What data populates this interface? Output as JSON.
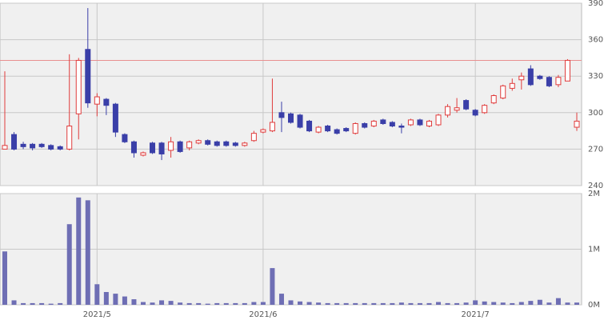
{
  "chart_data": [
    {
      "type": "candlestick",
      "open": [
        270,
        282,
        274,
        274,
        274,
        273,
        272,
        270,
        299,
        352,
        307,
        311,
        307,
        282,
        276,
        265,
        275,
        275,
        269,
        276,
        271,
        275,
        277,
        276,
        276,
        275,
        273,
        277,
        284,
        285,
        300,
        299,
        298,
        293,
        284,
        289,
        286,
        287,
        283,
        291,
        289,
        294,
        292,
        289,
        290,
        294,
        289,
        290,
        298,
        302,
        310,
        302,
        300,
        308,
        312,
        320,
        327,
        336,
        330,
        329,
        323,
        326,
        288
      ],
      "high": [
        334,
        284,
        276,
        275,
        275,
        274,
        273,
        348,
        345,
        386,
        316,
        312,
        308,
        283,
        277,
        268,
        276,
        276,
        280,
        277,
        277,
        278,
        278,
        277,
        277,
        276,
        276,
        285,
        287,
        328,
        309,
        300,
        299,
        294,
        289,
        290,
        287,
        288,
        292,
        292,
        294,
        295,
        293,
        291,
        295,
        295,
        294,
        299,
        307,
        312,
        311,
        303,
        307,
        315,
        323,
        328,
        333,
        339,
        331,
        330,
        331,
        344,
        300
      ],
      "low": [
        270,
        269,
        270,
        269,
        271,
        269,
        269,
        269,
        278,
        304,
        297,
        298,
        280,
        275,
        263,
        264,
        266,
        261,
        263,
        267,
        269,
        274,
        273,
        272,
        272,
        272,
        272,
        276,
        283,
        284,
        284,
        291,
        287,
        284,
        283,
        284,
        282,
        284,
        282,
        287,
        288,
        290,
        288,
        283,
        289,
        289,
        288,
        289,
        296,
        300,
        302,
        297,
        299,
        307,
        311,
        318,
        319,
        322,
        327,
        321,
        321,
        326,
        285
      ],
      "close": [
        273,
        270,
        272,
        271,
        272,
        270,
        270,
        289,
        343,
        308,
        313,
        306,
        284,
        276,
        267,
        267,
        267,
        266,
        276,
        268,
        276,
        277,
        274,
        273,
        273,
        273,
        275,
        283,
        286,
        292,
        296,
        292,
        288,
        285,
        288,
        285,
        283,
        285,
        291,
        288,
        293,
        291,
        289,
        288,
        294,
        290,
        293,
        298,
        305,
        304,
        303,
        298,
        306,
        314,
        322,
        324,
        330,
        323,
        328,
        322,
        329,
        343,
        293
      ],
      "up_color": "#e03c3c",
      "down_color": "#3a3fa8",
      "reference_line": 343,
      "reference_color": "#e89090",
      "ylim": [
        240,
        390
      ],
      "yticks": [
        240,
        270,
        300,
        330,
        360,
        390
      ],
      "grid": true
    },
    {
      "type": "bar",
      "categories": [
        null,
        null,
        null,
        null,
        null,
        null,
        null,
        null,
        null,
        null,
        "2021/5",
        null,
        null,
        null,
        null,
        null,
        null,
        null,
        null,
        null,
        null,
        null,
        null,
        null,
        null,
        null,
        null,
        null,
        "2021/6",
        null,
        null,
        null,
        null,
        null,
        null,
        null,
        null,
        null,
        null,
        null,
        null,
        null,
        null,
        null,
        null,
        null,
        null,
        null,
        null,
        null,
        null,
        "2021/7",
        null,
        null,
        null,
        null,
        null,
        null,
        null,
        null,
        null,
        null,
        null
      ],
      "values": [
        960000,
        80000,
        30000,
        30000,
        30000,
        20000,
        30000,
        1450000,
        1930000,
        1880000,
        370000,
        230000,
        200000,
        150000,
        100000,
        50000,
        40000,
        80000,
        70000,
        40000,
        30000,
        30000,
        20000,
        30000,
        30000,
        30000,
        30000,
        50000,
        50000,
        660000,
        200000,
        80000,
        60000,
        50000,
        40000,
        30000,
        30000,
        30000,
        30000,
        30000,
        30000,
        30000,
        30000,
        40000,
        30000,
        30000,
        30000,
        50000,
        30000,
        30000,
        40000,
        80000,
        60000,
        50000,
        40000,
        30000,
        50000,
        70000,
        90000,
        40000,
        120000,
        40000,
        40000
      ],
      "color": "#6e6eb4",
      "ylim": [
        0,
        2000000
      ],
      "yticks": [
        {
          "value": 0,
          "label": "0M"
        },
        {
          "value": 1000000,
          "label": "1M"
        },
        {
          "value": 2000000,
          "label": "2M"
        }
      ],
      "grid": true
    }
  ]
}
